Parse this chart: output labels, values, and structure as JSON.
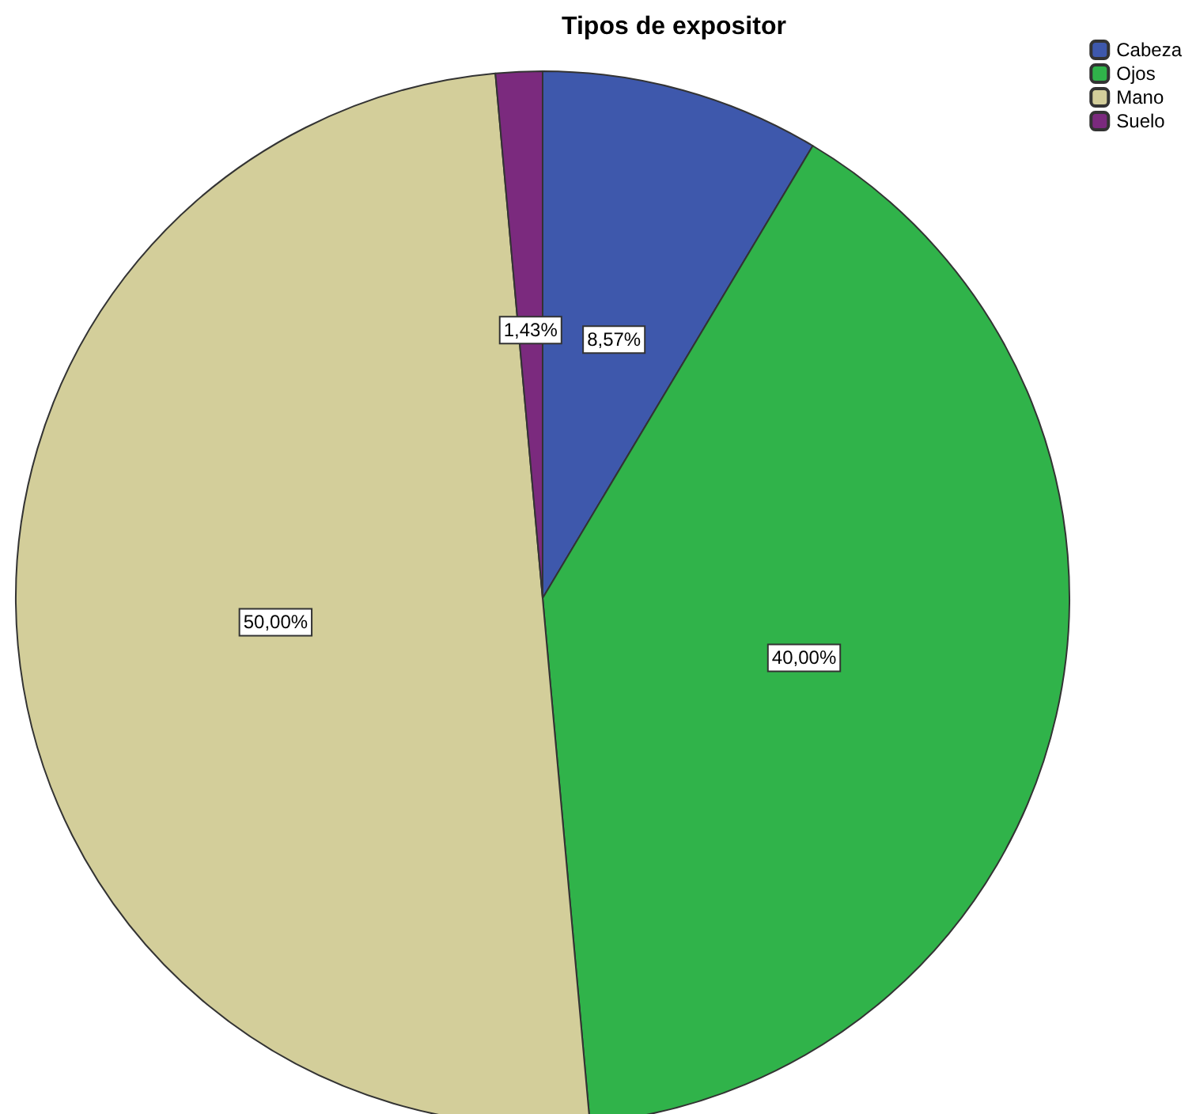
{
  "chart_data": {
    "type": "pie",
    "title": "Tipos de expositor",
    "categories": [
      "Cabeza",
      "Ojos",
      "Mano",
      "Suelo"
    ],
    "values": [
      8.57,
      40,
      50,
      1.43
    ],
    "value_labels": [
      "8,57%",
      "40,00%",
      "50,00%",
      "1,43%"
    ],
    "colors": [
      "#3e58ac",
      "#30b34a",
      "#d3ce9a",
      "#7b2a7e"
    ],
    "legend": "top right"
  }
}
